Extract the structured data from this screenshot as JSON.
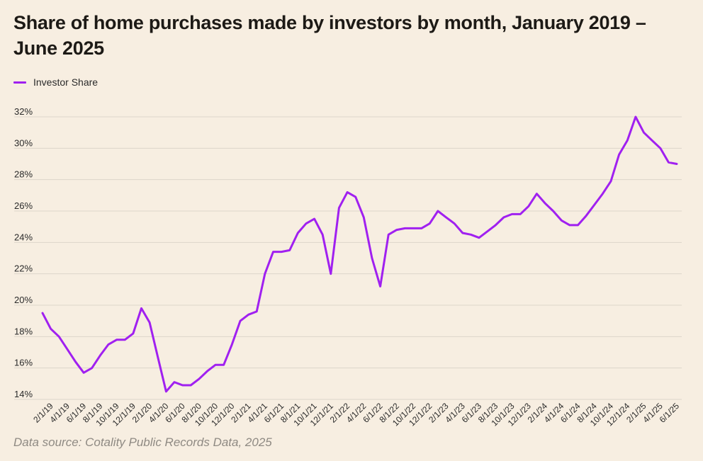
{
  "title": "Share of home purchases made by investors by month, January 2019 – June 2025",
  "source": "Data source: Cotality Public Records Data, 2025",
  "colors": {
    "background": "#f7eee1",
    "series": "#a020f0",
    "grid": "#ddd5ca"
  },
  "chart_data": {
    "type": "line",
    "title": "Share of home purchases made by investors by month, January 2019 – June 2025",
    "xlabel": "",
    "ylabel": "",
    "ylim": [
      14,
      32
    ],
    "yticks": [
      "14%",
      "16%",
      "18%",
      "20%",
      "22%",
      "24%",
      "26%",
      "28%",
      "30%",
      "32%"
    ],
    "grid": "horizontal",
    "legend": "top-left",
    "x": [
      "1/1/19",
      "2/1/19",
      "3/1/19",
      "4/1/19",
      "5/1/19",
      "6/1/19",
      "7/1/19",
      "8/1/19",
      "9/1/19",
      "10/1/19",
      "11/1/19",
      "12/1/19",
      "1/1/20",
      "2/1/20",
      "3/1/20",
      "4/1/20",
      "5/1/20",
      "6/1/20",
      "7/1/20",
      "8/1/20",
      "9/1/20",
      "10/1/20",
      "11/1/20",
      "12/1/20",
      "1/1/21",
      "2/1/21",
      "3/1/21",
      "4/1/21",
      "5/1/21",
      "6/1/21",
      "7/1/21",
      "8/1/21",
      "9/1/21",
      "10/1/21",
      "11/1/21",
      "12/1/21",
      "1/1/22",
      "2/1/22",
      "3/1/22",
      "4/1/22",
      "5/1/22",
      "6/1/22",
      "7/1/22",
      "8/1/22",
      "9/1/22",
      "10/1/22",
      "11/1/22",
      "12/1/22",
      "1/1/23",
      "2/1/23",
      "3/1/23",
      "4/1/23",
      "5/1/23",
      "6/1/23",
      "7/1/23",
      "8/1/23",
      "9/1/23",
      "10/1/23",
      "11/1/23",
      "12/1/23",
      "1/1/24",
      "2/1/24",
      "3/1/24",
      "4/1/24",
      "5/1/24",
      "6/1/24",
      "7/1/24",
      "8/1/24",
      "9/1/24",
      "10/1/24",
      "11/1/24",
      "12/1/24",
      "1/1/25",
      "2/1/25",
      "3/1/25",
      "4/1/25",
      "5/1/25",
      "6/1/25"
    ],
    "xticks": [
      "2/1/19",
      "4/1/19",
      "6/1/19",
      "8/1/19",
      "10/1/19",
      "12/1/19",
      "2/1/20",
      "4/1/20",
      "6/1/20",
      "8/1/20",
      "10/1/20",
      "12/1/20",
      "2/1/21",
      "4/1/21",
      "6/1/21",
      "8/1/21",
      "10/1/21",
      "12/1/21",
      "2/1/22",
      "4/1/22",
      "6/1/22",
      "8/1/22",
      "10/1/22",
      "12/1/22",
      "2/1/23",
      "4/1/23",
      "6/1/23",
      "8/1/23",
      "10/1/23",
      "12/1/23",
      "2/1/24",
      "4/1/24",
      "6/1/24",
      "8/1/24",
      "10/1/24",
      "12/1/24",
      "2/1/25",
      "4/1/25",
      "6/1/25"
    ],
    "series": [
      {
        "name": "Investor Share",
        "values": [
          19.5,
          18.5,
          18.0,
          17.2,
          16.4,
          15.7,
          16.0,
          16.8,
          17.5,
          17.8,
          17.8,
          18.2,
          19.8,
          18.9,
          16.7,
          14.5,
          15.1,
          14.9,
          14.9,
          15.3,
          15.8,
          16.2,
          16.2,
          17.5,
          19.0,
          19.4,
          19.6,
          22.0,
          23.4,
          23.4,
          23.5,
          24.6,
          25.2,
          25.5,
          24.5,
          22.0,
          26.2,
          27.2,
          26.9,
          25.6,
          23.0,
          21.2,
          24.5,
          24.8,
          24.9,
          24.9,
          24.9,
          25.2,
          26.0,
          25.6,
          25.2,
          24.6,
          24.5,
          24.3,
          24.7,
          25.1,
          25.6,
          25.8,
          25.8,
          26.3,
          27.1,
          26.5,
          26.0,
          25.4,
          25.1,
          25.1,
          25.7,
          26.4,
          27.1,
          27.9,
          29.6,
          30.5,
          32.0,
          31.0,
          30.5,
          30.0,
          29.1,
          29.0
        ]
      }
    ]
  }
}
